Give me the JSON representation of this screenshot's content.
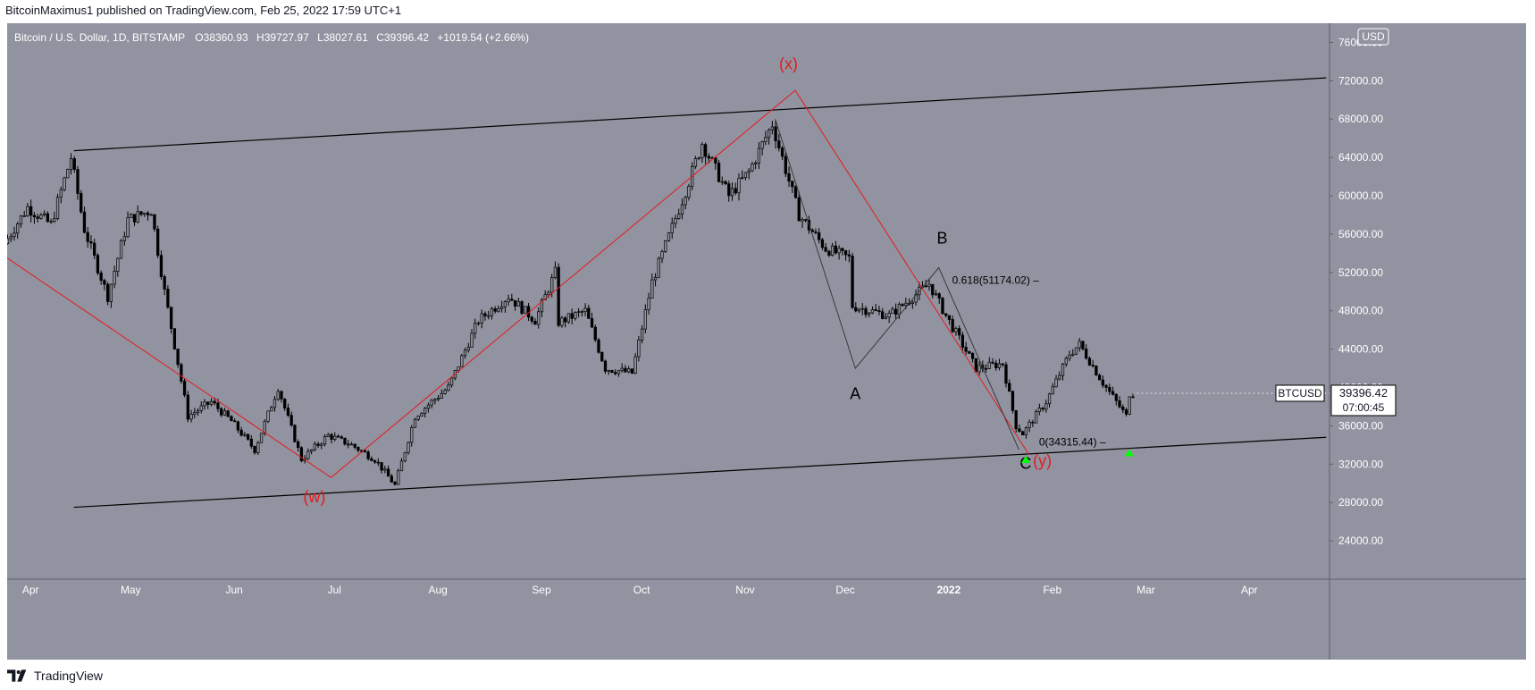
{
  "header": {
    "published_line": "BitcoinMaximus1 published on TradingView.com, Feb 25, 2022 17:59 UTC+1"
  },
  "legend": {
    "symbol": "Bitcoin / U.S. Dollar, 1D, BITSTAMP",
    "o_key": "O",
    "o_val": "38360.93",
    "h_key": "H",
    "h_val": "39727.97",
    "l_key": "L",
    "l_val": "38027.61",
    "c_key": "C",
    "c_val": "39396.42",
    "change": "+1019.54 (+2.66%)"
  },
  "footer": {
    "brand": "TradingView",
    "logo_icon": "tradingview-logo-icon"
  },
  "chart_data": {
    "type": "candlestick",
    "symbol": "BTCUSD",
    "currency": "USD",
    "interval": "1D",
    "exchange": "BITSTAMP",
    "ylim": [
      20000,
      78000
    ],
    "y_scale": "linear",
    "y_ticks": [
      "24000.00",
      "28000.00",
      "32000.00",
      "36000.00",
      "40000.00",
      "44000.00",
      "48000.00",
      "52000.00",
      "56000.00",
      "60000.00",
      "64000.00",
      "68000.00",
      "72000.00",
      "76000.00"
    ],
    "x_range": [
      "2021-03-25",
      "2022-04-25"
    ],
    "x_ticks": [
      {
        "date": "2021-04-01",
        "label": "Apr"
      },
      {
        "date": "2021-05-01",
        "label": "May"
      },
      {
        "date": "2021-06-01",
        "label": "Jun"
      },
      {
        "date": "2021-07-01",
        "label": "Jul"
      },
      {
        "date": "2021-08-01",
        "label": "Aug"
      },
      {
        "date": "2021-09-01",
        "label": "Sep"
      },
      {
        "date": "2021-10-01",
        "label": "Oct"
      },
      {
        "date": "2021-11-01",
        "label": "Nov"
      },
      {
        "date": "2021-12-01",
        "label": "Dec"
      },
      {
        "date": "2022-01-01",
        "label": "2022"
      },
      {
        "date": "2022-02-01",
        "label": "Feb"
      },
      {
        "date": "2022-03-01",
        "label": "Mar"
      },
      {
        "date": "2022-04-01",
        "label": "Apr"
      }
    ],
    "price_path": [
      [
        "2021-03-25",
        55000
      ],
      [
        "2021-04-01",
        58800
      ],
      [
        "2021-04-08",
        57000
      ],
      [
        "2021-04-14",
        64000
      ],
      [
        "2021-04-18",
        56500
      ],
      [
        "2021-04-25",
        49500
      ],
      [
        "2021-05-01",
        57500
      ],
      [
        "2021-05-08",
        58500
      ],
      [
        "2021-05-12",
        50000
      ],
      [
        "2021-05-19",
        37000
      ],
      [
        "2021-05-26",
        38500
      ],
      [
        "2021-06-01",
        36500
      ],
      [
        "2021-06-08",
        33500
      ],
      [
        "2021-06-15",
        40000
      ],
      [
        "2021-06-22",
        32500
      ],
      [
        "2021-06-30",
        35000
      ],
      [
        "2021-07-07",
        34000
      ],
      [
        "2021-07-14",
        32500
      ],
      [
        "2021-07-20",
        29800
      ],
      [
        "2021-07-26",
        37000
      ],
      [
        "2021-08-05",
        40000
      ],
      [
        "2021-08-14",
        47000
      ],
      [
        "2021-08-23",
        49500
      ],
      [
        "2021-08-31",
        47000
      ],
      [
        "2021-09-06",
        52000
      ],
      [
        "2021-09-07",
        46800
      ],
      [
        "2021-09-15",
        48000
      ],
      [
        "2021-09-21",
        42000
      ],
      [
        "2021-09-29",
        41500
      ],
      [
        "2021-10-05",
        51000
      ],
      [
        "2021-10-15",
        60500
      ],
      [
        "2021-10-20",
        65500
      ],
      [
        "2021-10-28",
        60000
      ],
      [
        "2021-11-03",
        62500
      ],
      [
        "2021-11-10",
        67500
      ],
      [
        "2021-11-18",
        58000
      ],
      [
        "2021-11-26",
        54500
      ],
      [
        "2021-12-03",
        53500
      ],
      [
        "2021-12-04",
        48500
      ],
      [
        "2021-12-15",
        47500
      ],
      [
        "2021-12-27",
        50800
      ],
      [
        "2022-01-01",
        47500
      ],
      [
        "2022-01-10",
        42000
      ],
      [
        "2022-01-18",
        42500
      ],
      [
        "2022-01-22",
        36000
      ],
      [
        "2022-01-24",
        35200
      ],
      [
        "2022-01-31",
        38500
      ],
      [
        "2022-02-07",
        43500
      ],
      [
        "2022-02-10",
        44500
      ],
      [
        "2022-02-17",
        40500
      ],
      [
        "2022-02-24",
        37000
      ],
      [
        "2022-02-25",
        39396
      ]
    ],
    "channel_lines": [
      {
        "from": [
          "2021-04-14",
          64700
        ],
        "to": [
          "2022-04-24",
          72300
        ]
      },
      {
        "from": [
          "2021-04-14",
          27500
        ],
        "to": [
          "2022-04-24",
          34800
        ]
      }
    ],
    "wxy_path": [
      [
        "2021-03-25",
        53500
      ],
      [
        "2021-06-30",
        30600
      ],
      [
        "2021-11-16",
        71000
      ],
      [
        "2022-01-25",
        33000
      ]
    ],
    "abc_path": [
      [
        "2021-11-10",
        68000
      ],
      [
        "2021-12-04",
        42000
      ],
      [
        "2021-12-29",
        52500
      ],
      [
        "2022-01-22",
        33500
      ]
    ],
    "wave_labels": [
      {
        "text": "(w)",
        "date": "2021-06-25",
        "price": 28000,
        "color": "#e8191c"
      },
      {
        "text": "(x)",
        "date": "2021-11-14",
        "price": 73200,
        "color": "#e8191c"
      },
      {
        "text": "(y)",
        "date": "2022-01-29",
        "price": 31800,
        "color": "#e8191c"
      },
      {
        "text": "A",
        "date": "2021-12-04",
        "price": 38800,
        "color": "#000000"
      },
      {
        "text": "B",
        "date": "2021-12-30",
        "price": 55000,
        "color": "#000000"
      },
      {
        "text": "C",
        "date": "2022-01-24",
        "price": 31500,
        "color": "#000000"
      }
    ],
    "fib_levels": [
      {
        "label": "0.618(51174.02)",
        "price": 51174.02,
        "date": "2022-01-02"
      },
      {
        "label": "0(34315.44)",
        "price": 34315.44,
        "date": "2022-01-28"
      }
    ],
    "markers": [
      {
        "date": "2022-01-24",
        "price": 32500,
        "color": "#00ff00"
      },
      {
        "date": "2022-02-24",
        "price": 33200,
        "color": "#00ff00"
      }
    ],
    "price_tag": {
      "label": "BTCUSD",
      "price": "39396.42",
      "countdown": "07:00:45",
      "value": 39396.42
    },
    "colors": {
      "background": "#9193a0",
      "candle": "#000000",
      "wxy": "#e8191c",
      "channel": "#000000",
      "abc": "#3a3a3a"
    }
  }
}
